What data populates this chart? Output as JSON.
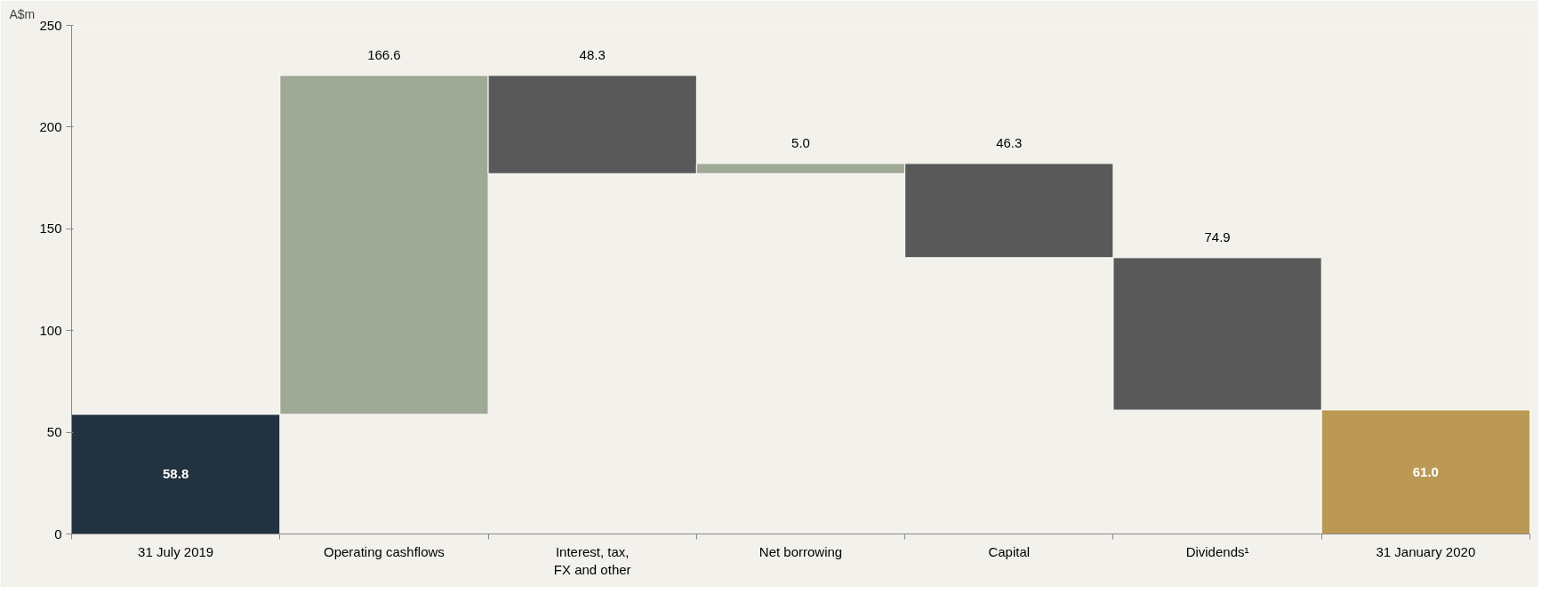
{
  "chart_data": {
    "type": "bar",
    "ylabel": "A$m",
    "categories": [
      "31 July 2019",
      "Operating cashflows",
      "Interest, tax,\nFX and other",
      "Net borrowing",
      "Capital",
      "Dividends¹",
      "31 January 2020"
    ],
    "values": [
      58.8,
      166.6,
      48.3,
      5.0,
      46.3,
      74.9,
      61.0
    ],
    "base": [
      0,
      58.8,
      177.1,
      177.1,
      135.8,
      60.9,
      0
    ],
    "colors": [
      "#22323f",
      "#a0a996",
      "#595959",
      "#a0a996",
      "#595959",
      "#595959",
      "#bb9955"
    ],
    "ylim": [
      0,
      250
    ],
    "yticks": [
      0,
      50,
      100,
      150,
      200,
      250
    ],
    "value_labels": [
      "58.8",
      "166.6",
      "48.3",
      "5.0",
      "46.3",
      "74.9",
      "61.0"
    ],
    "grid": false
  }
}
